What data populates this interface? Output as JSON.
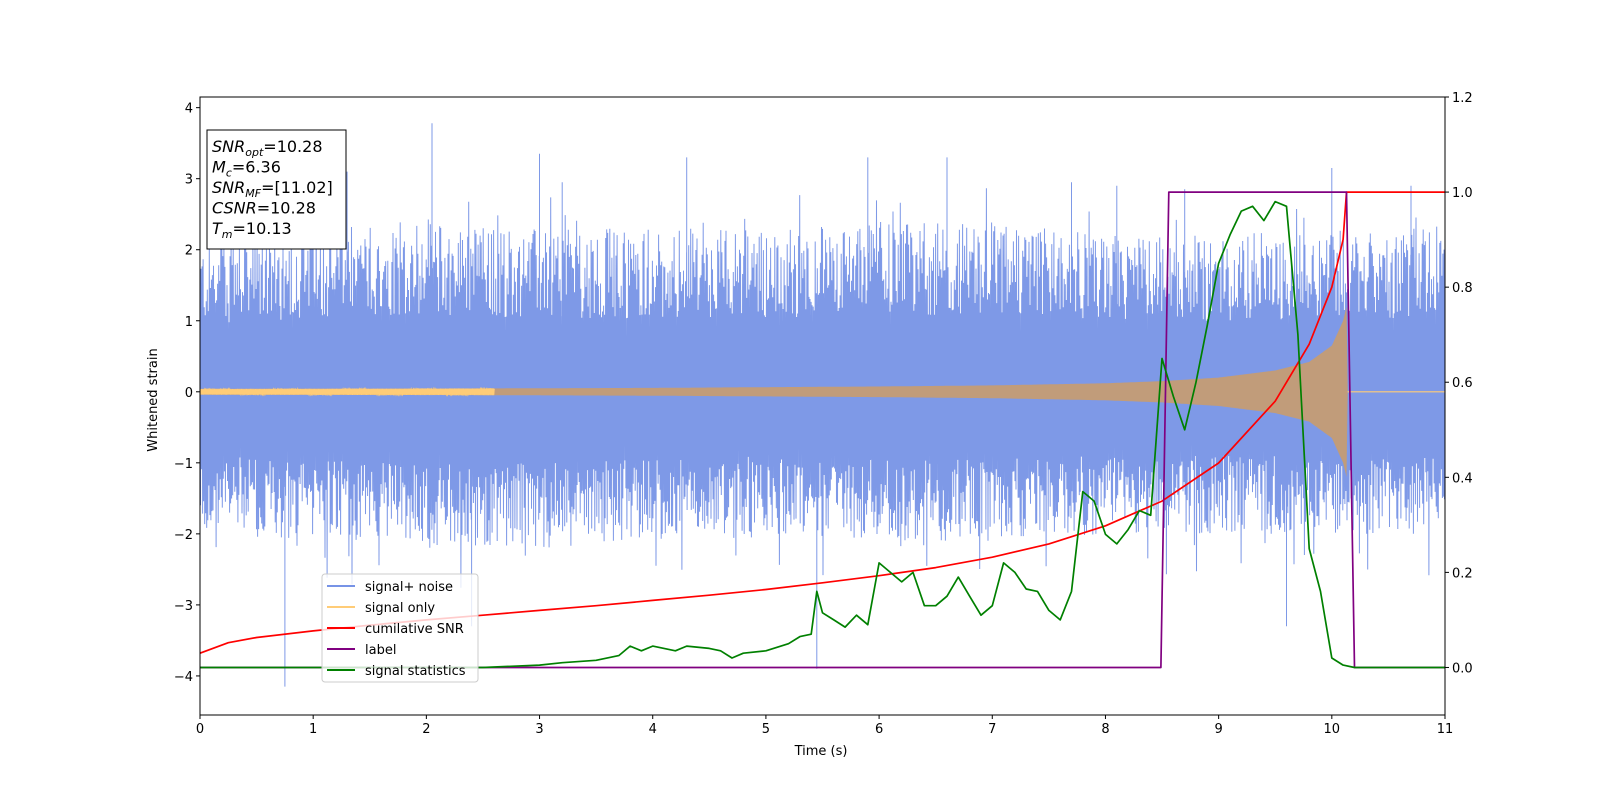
{
  "chart_data": {
    "type": "line",
    "title": "",
    "xlabel": "Time (s)",
    "ylabel": "Whitened strain",
    "xlim": [
      0,
      11
    ],
    "ylim": [
      -4.55,
      4.15
    ],
    "y2lim": [
      -0.1,
      1.2
    ],
    "x_ticks": [
      "0",
      "1",
      "2",
      "3",
      "4",
      "5",
      "6",
      "7",
      "8",
      "9",
      "10",
      "11"
    ],
    "y_ticks": [
      "−4",
      "−3",
      "−2",
      "−1",
      "0",
      "1",
      "2",
      "3",
      "4"
    ],
    "y2_ticks": [
      "0.0",
      "0.2",
      "0.4",
      "0.6",
      "0.8",
      "1.0",
      "1.2"
    ],
    "grid": false,
    "legend_position": "lower-left",
    "annotation": {
      "lines": [
        {
          "base": "SNR",
          "sub": "opt",
          "value": "=10.28"
        },
        {
          "base": "M",
          "sub": "c",
          "value": "=6.36"
        },
        {
          "base": "SNR",
          "sub": "MF",
          "value": "=[11.02]"
        },
        {
          "base": "CSNR",
          "sub": "",
          "value": "=10.28"
        },
        {
          "base": "T",
          "sub": "m",
          "value": "=10.13"
        }
      ]
    },
    "series": [
      {
        "name": "signal+ noise",
        "color": "#7793e6",
        "axis": "left",
        "style": "noise-band",
        "envelope_upper": [
          [
            0,
            2.1
          ],
          [
            1,
            2.3
          ],
          [
            2,
            2.4
          ],
          [
            3,
            2.3
          ],
          [
            4,
            2.3
          ],
          [
            5,
            2.3
          ],
          [
            6,
            2.4
          ],
          [
            7,
            2.4
          ],
          [
            8,
            2.2
          ],
          [
            9,
            2.2
          ],
          [
            10,
            2.3
          ],
          [
            11,
            2.3
          ]
        ],
        "envelope_lower": [
          [
            0,
            -2.0
          ],
          [
            1,
            -2.1
          ],
          [
            2,
            -2.2
          ],
          [
            3,
            -2.2
          ],
          [
            4,
            -2.1
          ],
          [
            5,
            -2.0
          ],
          [
            6,
            -2.1
          ],
          [
            7,
            -2.1
          ],
          [
            8,
            -2.0
          ],
          [
            9,
            -2.0
          ],
          [
            10,
            -2.0
          ],
          [
            11,
            -2.0
          ]
        ],
        "spikes": [
          [
            0.75,
            -4.15
          ],
          [
            1.3,
            3.1
          ],
          [
            2.05,
            3.78
          ],
          [
            2.4,
            -3.3
          ],
          [
            3.0,
            3.35
          ],
          [
            3.2,
            2.95
          ],
          [
            4.3,
            3.3
          ],
          [
            5.45,
            -3.9
          ],
          [
            5.9,
            3.3
          ],
          [
            6.6,
            3.3
          ],
          [
            7.7,
            2.95
          ],
          [
            8.1,
            2.9
          ],
          [
            8.7,
            2.85
          ],
          [
            9.6,
            -3.3
          ],
          [
            10.0,
            3.15
          ],
          [
            10.7,
            2.9
          ]
        ]
      },
      {
        "name": "signal only",
        "color": "#ffcc77",
        "axis": "left",
        "style": "chirp",
        "fill_color": "#c19c7a",
        "amplitude": [
          [
            0,
            0.04
          ],
          [
            2,
            0.045
          ],
          [
            4,
            0.055
          ],
          [
            6,
            0.075
          ],
          [
            7,
            0.09
          ],
          [
            8,
            0.12
          ],
          [
            8.5,
            0.15
          ],
          [
            9,
            0.2
          ],
          [
            9.5,
            0.3
          ],
          [
            9.8,
            0.42
          ],
          [
            10.0,
            0.65
          ],
          [
            10.1,
            1.0
          ],
          [
            10.13,
            1.2
          ],
          [
            10.14,
            0.0
          ],
          [
            11,
            0.0
          ]
        ]
      },
      {
        "name": "cumilative SNR",
        "color": "#ff0000",
        "axis": "right",
        "points": [
          [
            0,
            0.03
          ],
          [
            0.25,
            0.052
          ],
          [
            0.5,
            0.063
          ],
          [
            1,
            0.077
          ],
          [
            1.5,
            0.089
          ],
          [
            2,
            0.1
          ],
          [
            2.5,
            0.11
          ],
          [
            3,
            0.12
          ],
          [
            3.5,
            0.13
          ],
          [
            4,
            0.141
          ],
          [
            4.5,
            0.152
          ],
          [
            5,
            0.164
          ],
          [
            5.5,
            0.178
          ],
          [
            6,
            0.193
          ],
          [
            6.5,
            0.21
          ],
          [
            7,
            0.232
          ],
          [
            7.5,
            0.26
          ],
          [
            8,
            0.298
          ],
          [
            8.5,
            0.35
          ],
          [
            9,
            0.43
          ],
          [
            9.5,
            0.56
          ],
          [
            9.8,
            0.68
          ],
          [
            10.0,
            0.8
          ],
          [
            10.1,
            0.9
          ],
          [
            10.13,
            1.0
          ],
          [
            11,
            1.0
          ]
        ]
      },
      {
        "name": "label",
        "color": "#800080",
        "axis": "right",
        "points": [
          [
            0,
            0.0
          ],
          [
            8.49,
            0.0
          ],
          [
            8.56,
            1.0
          ],
          [
            10.13,
            1.0
          ],
          [
            10.2,
            0.0
          ],
          [
            11,
            0.0
          ]
        ]
      },
      {
        "name": "signal statistics",
        "color": "#008000",
        "axis": "right",
        "points": [
          [
            0,
            0.0
          ],
          [
            2.5,
            0.0
          ],
          [
            3.0,
            0.005
          ],
          [
            3.2,
            0.01
          ],
          [
            3.5,
            0.015
          ],
          [
            3.7,
            0.025
          ],
          [
            3.8,
            0.045
          ],
          [
            3.9,
            0.035
          ],
          [
            4.0,
            0.045
          ],
          [
            4.2,
            0.035
          ],
          [
            4.3,
            0.045
          ],
          [
            4.5,
            0.04
          ],
          [
            4.6,
            0.035
          ],
          [
            4.7,
            0.02
          ],
          [
            4.8,
            0.03
          ],
          [
            5.0,
            0.035
          ],
          [
            5.2,
            0.05
          ],
          [
            5.3,
            0.065
          ],
          [
            5.4,
            0.07
          ],
          [
            5.45,
            0.16
          ],
          [
            5.5,
            0.115
          ],
          [
            5.6,
            0.1
          ],
          [
            5.7,
            0.085
          ],
          [
            5.8,
            0.11
          ],
          [
            5.9,
            0.09
          ],
          [
            6.0,
            0.22
          ],
          [
            6.1,
            0.2
          ],
          [
            6.2,
            0.18
          ],
          [
            6.3,
            0.2
          ],
          [
            6.4,
            0.13
          ],
          [
            6.5,
            0.13
          ],
          [
            6.6,
            0.15
          ],
          [
            6.7,
            0.19
          ],
          [
            6.8,
            0.15
          ],
          [
            6.9,
            0.11
          ],
          [
            7.0,
            0.13
          ],
          [
            7.1,
            0.22
          ],
          [
            7.2,
            0.2
          ],
          [
            7.3,
            0.165
          ],
          [
            7.4,
            0.16
          ],
          [
            7.5,
            0.12
          ],
          [
            7.6,
            0.1
          ],
          [
            7.7,
            0.16
          ],
          [
            7.8,
            0.37
          ],
          [
            7.9,
            0.35
          ],
          [
            8.0,
            0.28
          ],
          [
            8.1,
            0.26
          ],
          [
            8.2,
            0.29
          ],
          [
            8.3,
            0.33
          ],
          [
            8.4,
            0.32
          ],
          [
            8.5,
            0.65
          ],
          [
            8.6,
            0.57
          ],
          [
            8.7,
            0.5
          ],
          [
            8.8,
            0.6
          ],
          [
            8.9,
            0.72
          ],
          [
            9.0,
            0.85
          ],
          [
            9.1,
            0.91
          ],
          [
            9.2,
            0.96
          ],
          [
            9.3,
            0.97
          ],
          [
            9.4,
            0.94
          ],
          [
            9.5,
            0.98
          ],
          [
            9.6,
            0.97
          ],
          [
            9.7,
            0.7
          ],
          [
            9.8,
            0.25
          ],
          [
            9.9,
            0.16
          ],
          [
            10.0,
            0.02
          ],
          [
            10.1,
            0.005
          ],
          [
            10.2,
            0.0
          ],
          [
            11,
            0.0
          ]
        ]
      }
    ]
  }
}
